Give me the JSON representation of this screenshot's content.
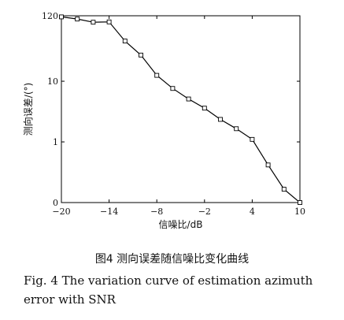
{
  "chart_data": {
    "type": "line",
    "title": "",
    "xlabel": "信噪比/dB",
    "ylabel": "测向误差/(°)",
    "x_ticks": [
      -20,
      -14,
      -8,
      -2,
      4,
      10
    ],
    "y_ticks": [
      0,
      1,
      10,
      120
    ],
    "y_tick_labels": [
      "0",
      "1",
      "10",
      "120"
    ],
    "xlim": [
      -20,
      10
    ],
    "ylim": [
      0,
      120
    ],
    "grid": false,
    "series": [
      {
        "marker": "square",
        "color": "#000000",
        "x": [
          -20,
          -18,
          -16,
          -14,
          -12,
          -10,
          -8,
          -6,
          -4,
          -2,
          0,
          2,
          4,
          6,
          8,
          10
        ],
        "y": [
          115,
          106,
          94,
          95,
          46,
          27,
          12.5,
          7.6,
          5.1,
          3.6,
          2.35,
          1.65,
          1.1,
          0.62,
          0.22,
          0
        ]
      }
    ]
  },
  "caption": {
    "cn": "图4   测向误差随信噪比变化曲线",
    "en": "Fig. 4  The variation curve of estimation azimuth error with SNR"
  }
}
